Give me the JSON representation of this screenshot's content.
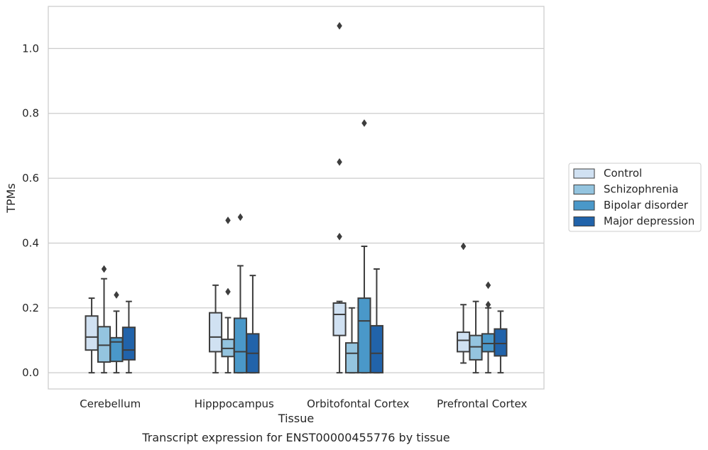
{
  "chart_data": {
    "type": "box",
    "xlabel": "Tissue",
    "ylabel": "TPMs",
    "caption": "Transcript expression for ENST00000455776 by tissue",
    "ylim": [
      -0.05,
      1.13
    ],
    "yticks": [
      "0.0",
      "0.2",
      "0.4",
      "0.6",
      "0.8",
      "1.0"
    ],
    "grid": "horizontal",
    "legend_placement": "right",
    "categories": [
      "Cerebellum",
      "Hipppocampus",
      "Orbitofontal Cortex",
      "Prefrontal Cortex"
    ],
    "series": [
      {
        "name": "Control",
        "color": "#d0e1f2",
        "boxes": [
          {
            "whislo": 0.0,
            "q1": 0.07,
            "med": 0.11,
            "q3": 0.175,
            "whishi": 0.23,
            "fliers": []
          },
          {
            "whislo": 0.0,
            "q1": 0.065,
            "med": 0.11,
            "q3": 0.185,
            "whishi": 0.27,
            "fliers": []
          },
          {
            "whislo": 0.0,
            "q1": 0.115,
            "med": 0.18,
            "q3": 0.215,
            "whishi": 0.22,
            "fliers": [
              0.42,
              0.65,
              1.07
            ]
          },
          {
            "whislo": 0.03,
            "q1": 0.065,
            "med": 0.1,
            "q3": 0.125,
            "whishi": 0.21,
            "fliers": [
              0.39
            ]
          }
        ]
      },
      {
        "name": "Schizophrenia",
        "color": "#94c4df",
        "boxes": [
          {
            "whislo": 0.0,
            "q1": 0.033,
            "med": 0.085,
            "q3": 0.142,
            "whishi": 0.29,
            "fliers": [
              0.32
            ]
          },
          {
            "whislo": 0.0,
            "q1": 0.05,
            "med": 0.075,
            "q3": 0.103,
            "whishi": 0.17,
            "fliers": [
              0.25,
              0.47
            ]
          },
          {
            "whislo": 0.0,
            "q1": 0.0,
            "med": 0.06,
            "q3": 0.092,
            "whishi": 0.2,
            "fliers": []
          },
          {
            "whislo": 0.0,
            "q1": 0.04,
            "med": 0.08,
            "q3": 0.115,
            "whishi": 0.22,
            "fliers": []
          }
        ]
      },
      {
        "name": "Bipolar disorder",
        "color": "#4a98c9",
        "boxes": [
          {
            "whislo": 0.0,
            "q1": 0.035,
            "med": 0.095,
            "q3": 0.108,
            "whishi": 0.19,
            "fliers": [
              0.24
            ]
          },
          {
            "whislo": 0.0,
            "q1": 0.0,
            "med": 0.065,
            "q3": 0.168,
            "whishi": 0.33,
            "fliers": [
              0.48
            ]
          },
          {
            "whislo": 0.0,
            "q1": 0.0,
            "med": 0.16,
            "q3": 0.23,
            "whishi": 0.39,
            "fliers": [
              0.77
            ]
          },
          {
            "whislo": 0.0,
            "q1": 0.065,
            "med": 0.09,
            "q3": 0.12,
            "whishi": 0.2,
            "fliers": [
              0.21,
              0.27
            ]
          }
        ]
      },
      {
        "name": "Major depression",
        "color": "#2163aa",
        "boxes": [
          {
            "whislo": 0.0,
            "q1": 0.04,
            "med": 0.07,
            "q3": 0.14,
            "whishi": 0.22,
            "fliers": []
          },
          {
            "whislo": 0.0,
            "q1": 0.0,
            "med": 0.06,
            "q3": 0.12,
            "whishi": 0.3,
            "fliers": []
          },
          {
            "whislo": 0.0,
            "q1": 0.0,
            "med": 0.06,
            "q3": 0.145,
            "whishi": 0.32,
            "fliers": []
          },
          {
            "whislo": 0.0,
            "q1": 0.052,
            "med": 0.09,
            "q3": 0.135,
            "whishi": 0.19,
            "fliers": []
          }
        ]
      }
    ]
  }
}
